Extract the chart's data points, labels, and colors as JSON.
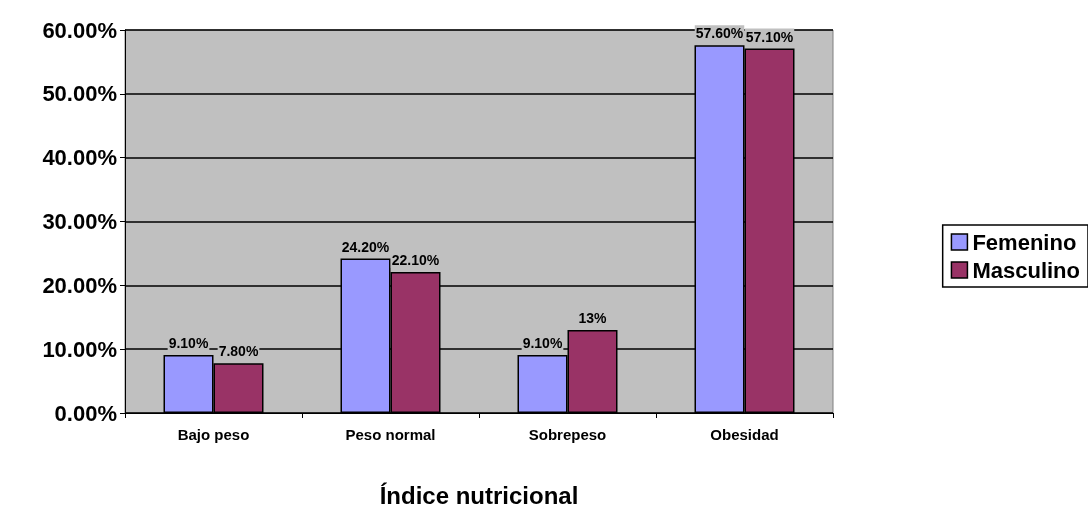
{
  "chart_data": {
    "type": "bar",
    "xlabel": "Índice nutricional",
    "categories": [
      "Bajo peso",
      "Peso normal",
      "Sobrepeso",
      "Obesidad"
    ],
    "series": [
      {
        "name": "Femenino",
        "color": "#9999ff",
        "values": [
          9.1,
          24.2,
          9.1,
          57.6
        ],
        "value_labels": [
          "9.10%",
          "24.20%",
          "9.10%",
          "57.60%"
        ]
      },
      {
        "name": "Masculino",
        "color": "#993366",
        "values": [
          7.8,
          22.1,
          13,
          57.1
        ],
        "value_labels": [
          "7.80%",
          "22.10%",
          "13%",
          "57.10%"
        ]
      }
    ],
    "ylim": [
      0,
      60
    ],
    "yticks": [
      {
        "value": 0,
        "label": "0.00%"
      },
      {
        "value": 10,
        "label": "10.00%"
      },
      {
        "value": 20,
        "label": "20.00%"
      },
      {
        "value": 30,
        "label": "30.00%"
      },
      {
        "value": 40,
        "label": "40.00%"
      },
      {
        "value": 50,
        "label": "50.00%"
      },
      {
        "value": 60,
        "label": "60.00%"
      }
    ],
    "grid": "y",
    "legend": "right"
  }
}
